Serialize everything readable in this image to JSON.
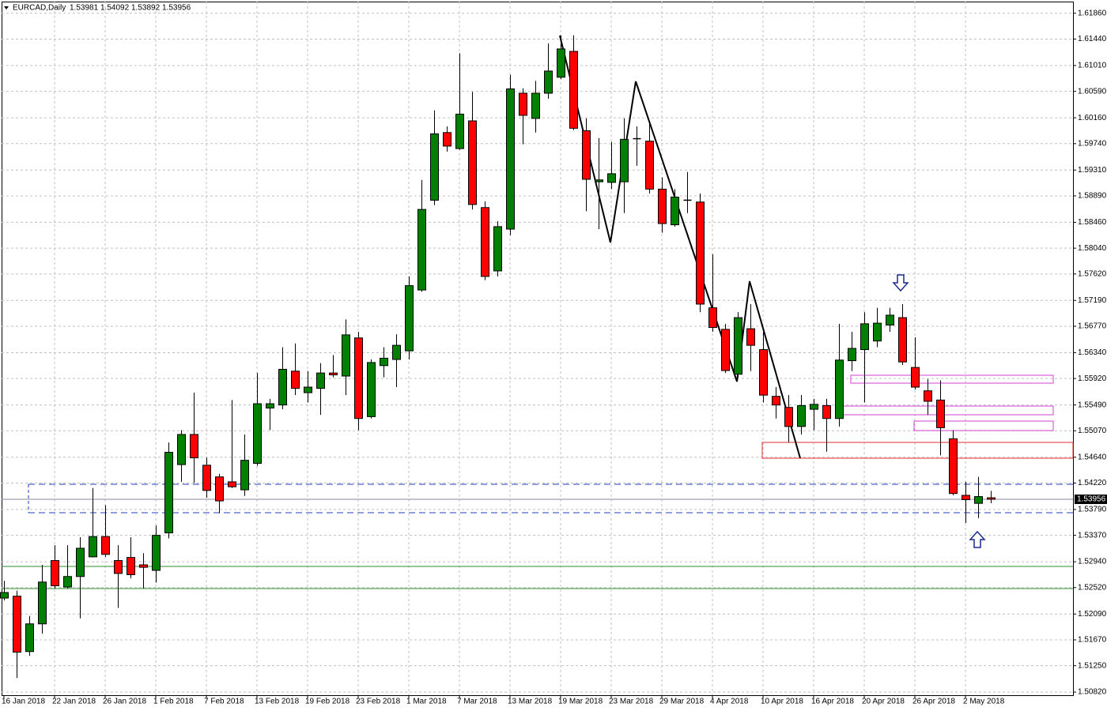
{
  "chart_data": {
    "type": "candlestick",
    "title": "EURCAD,Daily",
    "up_color": "#008000",
    "down_color": "#ff0000",
    "grid": true,
    "categories": [
      "16 Jan 2018",
      null,
      null,
      null,
      "22 Jan 2018",
      null,
      null,
      null,
      "26 Jan 2018",
      null,
      null,
      null,
      "1 Feb 2018",
      null,
      null,
      null,
      "7 Feb 2018",
      null,
      null,
      null,
      "13 Feb 2018",
      null,
      null,
      null,
      "19 Feb 2018",
      null,
      null,
      null,
      "23 Feb 2018",
      null,
      null,
      null,
      "1 Mar 2018",
      null,
      null,
      null,
      "7 Mar 2018",
      null,
      null,
      null,
      "13 Mar 2018",
      null,
      null,
      null,
      "19 Mar 2018",
      null,
      null,
      null,
      "23 Mar 2018",
      null,
      null,
      null,
      "29 Mar 2018",
      null,
      null,
      null,
      "4 Apr 2018",
      null,
      null,
      null,
      "10 Apr 2018",
      null,
      null,
      null,
      "16 Apr 2018",
      null,
      null,
      null,
      "20 Apr 2018",
      null,
      null,
      null,
      "26 Apr 2018",
      null,
      null,
      null,
      "2 May 2018",
      null,
      null
    ],
    "open": [
      1.5235,
      1.5238,
      1.5148,
      1.5193,
      1.5296,
      1.5253,
      1.527,
      1.5302,
      1.5335,
      1.5296,
      1.5301,
      1.5289,
      1.528,
      1.5341,
      1.5452,
      1.5501,
      1.5451,
      1.5432,
      1.5424,
      1.5411,
      1.5454,
      1.5544,
      1.5549,
      1.5604,
      1.5569,
      1.5576,
      1.5601,
      1.5596,
      1.5658,
      1.553,
      1.5613,
      1.5623,
      1.5637,
      1.5736,
      1.5882,
      1.5992,
      1.5966,
      1.6011,
      1.587,
      1.5767,
      1.5835,
      1.6056,
      1.6015,
      1.6056,
      1.6082,
      1.6124,
      1.5995,
      1.5912,
      1.5911,
      1.5912,
      1.5983,
      1.5978,
      1.59,
      1.5842,
      1.5883,
      1.5879,
      1.5707,
      1.5672,
      1.5599,
      1.5673,
      1.5639,
      1.5563,
      1.5545,
      1.5514,
      1.5542,
      1.5548,
      1.5527,
      1.5621,
      1.5639,
      1.5653,
      1.5679,
      1.5691,
      1.561,
      1.5572,
      1.5557,
      1.5494,
      1.5402,
      1.5389,
      1.53981
    ],
    "high": [
      1.5263,
      1.5247,
      1.5206,
      1.5289,
      1.5321,
      1.5321,
      1.5334,
      1.5414,
      1.5386,
      1.5321,
      1.5334,
      1.5308,
      1.5353,
      1.5488,
      1.5508,
      1.5569,
      1.5463,
      1.5437,
      1.5557,
      1.5501,
      1.5601,
      1.5559,
      1.5643,
      1.5649,
      1.5604,
      1.5617,
      1.563,
      1.5688,
      1.5668,
      1.5623,
      1.5643,
      1.5664,
      1.5758,
      1.5915,
      1.6028,
      1.6002,
      1.6121,
      1.6058,
      1.588,
      1.5848,
      1.6086,
      1.6064,
      1.6076,
      1.6137,
      1.615,
      1.615,
      1.6015,
      1.5983,
      1.5977,
      1.6015,
      1.6002,
      1.6009,
      1.5919,
      1.59,
      1.5928,
      1.5893,
      1.5794,
      1.5681,
      1.57,
      1.5713,
      1.5668,
      1.5578,
      1.5565,
      1.5565,
      1.5559,
      1.5559,
      1.5681,
      1.5668,
      1.57,
      1.5707,
      1.5707,
      1.5713,
      1.5659,
      1.5591,
      1.5589,
      1.5508,
      1.5424,
      1.5432,
      1.54092
    ],
    "low": [
      1.5231,
      1.5105,
      1.5141,
      1.5177,
      1.5251,
      1.5251,
      1.5202,
      1.5301,
      1.5302,
      1.5219,
      1.5267,
      1.5251,
      1.526,
      1.5332,
      1.5424,
      1.5422,
      1.5398,
      1.5373,
      1.5414,
      1.5401,
      1.545,
      1.5508,
      1.5542,
      1.5565,
      1.5553,
      1.5533,
      1.5594,
      1.5565,
      1.5508,
      1.5527,
      1.5594,
      1.5578,
      1.5623,
      1.5733,
      1.5874,
      1.5961,
      1.5964,
      1.5867,
      1.5752,
      1.5758,
      1.5825,
      1.5973,
      1.5992,
      1.6047,
      1.6079,
      1.5996,
      1.5864,
      1.5835,
      1.59,
      1.5861,
      1.5938,
      1.5893,
      1.5829,
      1.5839,
      1.5861,
      1.57,
      1.5668,
      1.5601,
      1.5594,
      1.5604,
      1.5553,
      1.5527,
      1.5488,
      1.5501,
      1.5508,
      1.5473,
      1.5514,
      1.5604,
      1.5553,
      1.5643,
      1.5668,
      1.5614,
      1.5574,
      1.5533,
      1.5467,
      1.5402,
      1.5357,
      1.5365,
      1.53892
    ],
    "close": [
      1.5244,
      1.5147,
      1.5193,
      1.5261,
      1.5255,
      1.527,
      1.5316,
      1.5335,
      1.5306,
      1.5275,
      1.5273,
      1.5285,
      1.5337,
      1.5472,
      1.5501,
      1.5463,
      1.541,
      1.5393,
      1.5416,
      1.5459,
      1.5551,
      1.5551,
      1.5607,
      1.5576,
      1.5578,
      1.5601,
      1.5598,
      1.5663,
      1.5527,
      1.5618,
      1.5625,
      1.5646,
      1.5743,
      1.5867,
      1.599,
      1.597,
      1.6022,
      1.5875,
      1.5758,
      1.5839,
      1.6063,
      1.602,
      1.6056,
      1.6092,
      1.6128,
      1.5999,
      1.5916,
      1.5915,
      1.5925,
      1.5981,
      1.5982,
      1.59,
      1.5844,
      1.5887,
      1.5882,
      1.5713,
      1.5675,
      1.5605,
      1.5691,
      1.5646,
      1.5565,
      1.5549,
      1.5514,
      1.5548,
      1.555,
      1.5527,
      1.5622,
      1.5641,
      1.5681,
      1.5682,
      1.5695,
      1.5619,
      1.5578,
      1.5555,
      1.5512,
      1.5405,
      1.5395,
      1.54,
      1.53956
    ],
    "ylim": [
      1.5077,
      1.6205
    ],
    "yticks": [
      {
        "value": 1.6186,
        "label": "1.61860"
      },
      {
        "value": 1.6144,
        "label": "1.61440"
      },
      {
        "value": 1.6101,
        "label": "1.61010"
      },
      {
        "value": 1.6059,
        "label": "1.60590"
      },
      {
        "value": 1.6016,
        "label": "1.60160"
      },
      {
        "value": 1.5974,
        "label": "1.59740"
      },
      {
        "value": 1.5931,
        "label": "1.59310"
      },
      {
        "value": 1.5889,
        "label": "1.58890"
      },
      {
        "value": 1.5846,
        "label": "1.58460"
      },
      {
        "value": 1.5804,
        "label": "1.58040"
      },
      {
        "value": 1.5762,
        "label": "1.57620"
      },
      {
        "value": 1.5719,
        "label": "1.57190"
      },
      {
        "value": 1.5677,
        "label": "1.56770"
      },
      {
        "value": 1.5634,
        "label": "1.56340"
      },
      {
        "value": 1.5592,
        "label": "1.55920"
      },
      {
        "value": 1.5549,
        "label": "1.55490"
      },
      {
        "value": 1.5507,
        "label": "1.55070"
      },
      {
        "value": 1.5464,
        "label": "1.54640"
      },
      {
        "value": 1.5422,
        "label": "1.54220"
      },
      {
        "value": 1.5379,
        "label": "1.53790"
      },
      {
        "value": 1.5337,
        "label": "1.53370"
      },
      {
        "value": 1.5294,
        "label": "1.52940"
      },
      {
        "value": 1.5252,
        "label": "1.52520"
      },
      {
        "value": 1.5209,
        "label": "1.52090"
      },
      {
        "value": 1.5167,
        "label": "1.51670"
      },
      {
        "value": 1.5125,
        "label": "1.51250"
      },
      {
        "value": 1.5082,
        "label": "1.50820"
      }
    ]
  }
}
